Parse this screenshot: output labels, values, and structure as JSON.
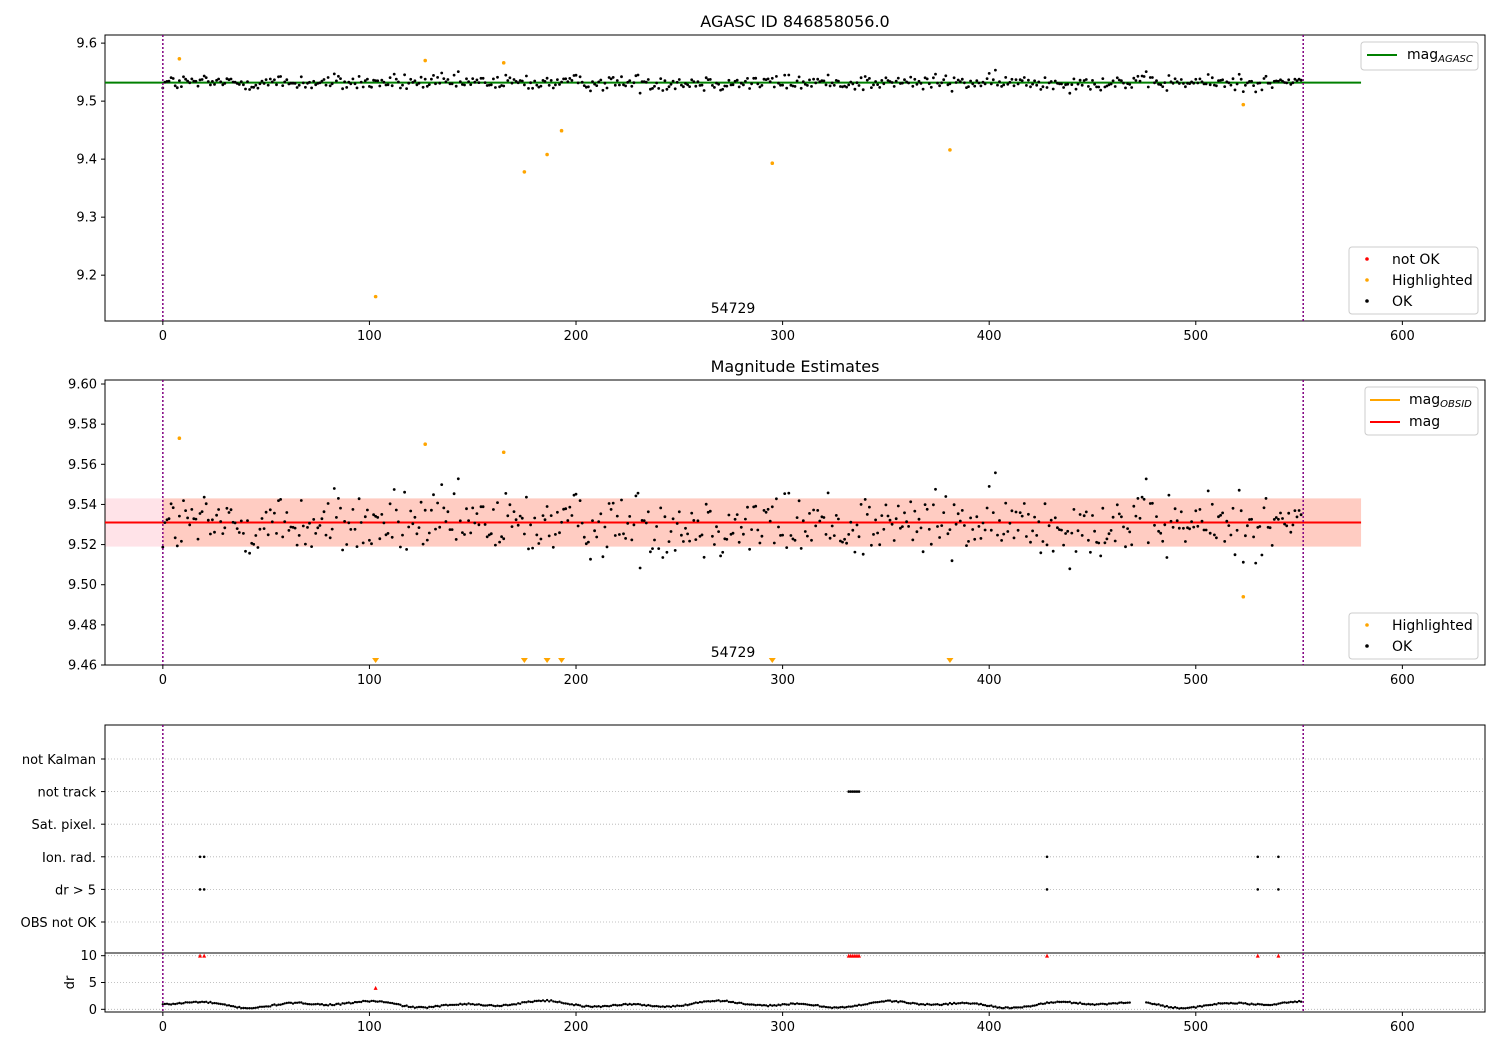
{
  "colors": {
    "ok": "#000000",
    "highlighted": "#ffa500",
    "not_ok": "#ff0000",
    "agasc_line": "#008000",
    "obsid_line": "#ffa500",
    "mag_line": "#ff0000",
    "mag_band": "#ffc0cb",
    "obsid_band": "#ffa07a",
    "obsid_marker": "#800080",
    "grid": "#b0b0b0"
  },
  "chart_data": [
    {
      "id": "agasc",
      "type": "scatter",
      "title": "AGASC ID 846858056.0",
      "xlim": [
        -28,
        640
      ],
      "ylim": [
        9.121,
        9.614
      ],
      "xticks": [
        0,
        100,
        200,
        300,
        400,
        500,
        600
      ],
      "yticks": [
        9.2,
        9.3,
        9.4,
        9.5,
        9.6
      ],
      "ytick_labels": [
        "9.2",
        "9.3",
        "9.4",
        "9.5",
        "9.6"
      ],
      "obsid_label": "54729",
      "obsid_bounds": [
        0,
        552
      ],
      "reference_line": {
        "name": "mag_AGASC",
        "y": 9.532,
        "x": [
          0,
          580
        ]
      },
      "legend_lines": [
        {
          "label": "mag",
          "sub": "AGASC",
          "color_key": "agasc_line"
        }
      ],
      "legend_markers": [
        {
          "label": "not OK",
          "color_key": "not_ok"
        },
        {
          "label": "Highlighted",
          "color_key": "highlighted"
        },
        {
          "label": "OK",
          "color_key": "ok"
        }
      ],
      "ok_series": {
        "n": 552,
        "center": 9.532,
        "spread": 0.01
      },
      "highlighted": {
        "x": [
          8,
          103,
          127,
          165,
          175,
          186,
          193,
          295,
          381,
          523
        ],
        "y": [
          9.573,
          9.163,
          9.57,
          9.566,
          9.378,
          9.408,
          9.449,
          9.393,
          9.416,
          9.494
        ]
      }
    },
    {
      "id": "mag",
      "type": "scatter",
      "title": "Magnitude Estimates",
      "xlim": [
        -28,
        640
      ],
      "ylim": [
        9.46,
        9.602
      ],
      "xticks": [
        0,
        100,
        200,
        300,
        400,
        500,
        600
      ],
      "yticks": [
        9.46,
        9.48,
        9.5,
        9.52,
        9.54,
        9.56,
        9.58,
        9.6
      ],
      "ytick_labels": [
        "9.46",
        "9.48",
        "9.50",
        "9.52",
        "9.54",
        "9.56",
        "9.58",
        "9.60"
      ],
      "obsid_label": "54729",
      "obsid_bounds": [
        0,
        552
      ],
      "mag": {
        "name": "mag",
        "y": 9.531,
        "band": [
          9.519,
          9.543
        ],
        "x": [
          -28,
          580
        ]
      },
      "mag_obsid": {
        "name": "mag_OBSID",
        "y": 9.531,
        "band": [
          9.519,
          9.543
        ],
        "x": [
          0,
          580
        ]
      },
      "legend_lines": [
        {
          "label": "mag",
          "sub": "OBSID",
          "color_key": "obsid_line"
        },
        {
          "label": "mag",
          "sub": "",
          "color_key": "mag_line"
        }
      ],
      "legend_markers": [
        {
          "label": "Highlighted",
          "color_key": "highlighted"
        },
        {
          "label": "OK",
          "color_key": "ok"
        }
      ],
      "ok_series": {
        "n": 552,
        "center": 9.531,
        "spread": 0.012
      },
      "highlighted": {
        "x": [
          8,
          127,
          165,
          523
        ],
        "y": [
          9.573,
          9.57,
          9.566,
          9.494
        ]
      },
      "below_range_markers_x": [
        103,
        175,
        186,
        193,
        295,
        381
      ]
    },
    {
      "id": "flags",
      "type": "scatter",
      "title": "",
      "xlim": [
        -28,
        640
      ],
      "xticks": [
        0,
        100,
        200,
        300,
        400,
        500,
        600
      ],
      "categories": [
        "not Kalman",
        "not track",
        "Sat. pixel.",
        "Ion. rad.",
        "dr > 5",
        "OBS not OK"
      ],
      "flagged": {
        "not Kalman": [],
        "not track": [
          332,
          333,
          334,
          335,
          336,
          337
        ],
        "Sat. pixel.": [],
        "Ion. rad.": [
          18,
          20,
          428,
          530,
          540
        ],
        "dr > 5": [
          18,
          20,
          428,
          530,
          540
        ],
        "OBS not OK": []
      },
      "obsid_bounds": [
        0,
        552
      ]
    },
    {
      "id": "dr",
      "type": "scatter",
      "title": "",
      "ylabel": "dr",
      "xlim": [
        -28,
        640
      ],
      "ylim": [
        -0.5,
        10.5
      ],
      "yticks": [
        0,
        5,
        10
      ],
      "ytick_labels": [
        "0",
        "5",
        "10"
      ],
      "xticks": [
        0,
        100,
        200,
        300,
        400,
        500,
        600
      ],
      "xtick_labels": [
        "0",
        "100",
        "200",
        "300",
        "400",
        "500",
        "600"
      ],
      "ok_series": {
        "n": 552
      },
      "red_x": [
        18,
        20,
        103,
        332,
        333,
        334,
        335,
        336,
        337,
        428,
        530,
        540
      ],
      "red_y": [
        10,
        10,
        4,
        10,
        10,
        10,
        10,
        10,
        10,
        10,
        10,
        10
      ],
      "obsid_bounds": [
        0,
        552
      ]
    }
  ]
}
